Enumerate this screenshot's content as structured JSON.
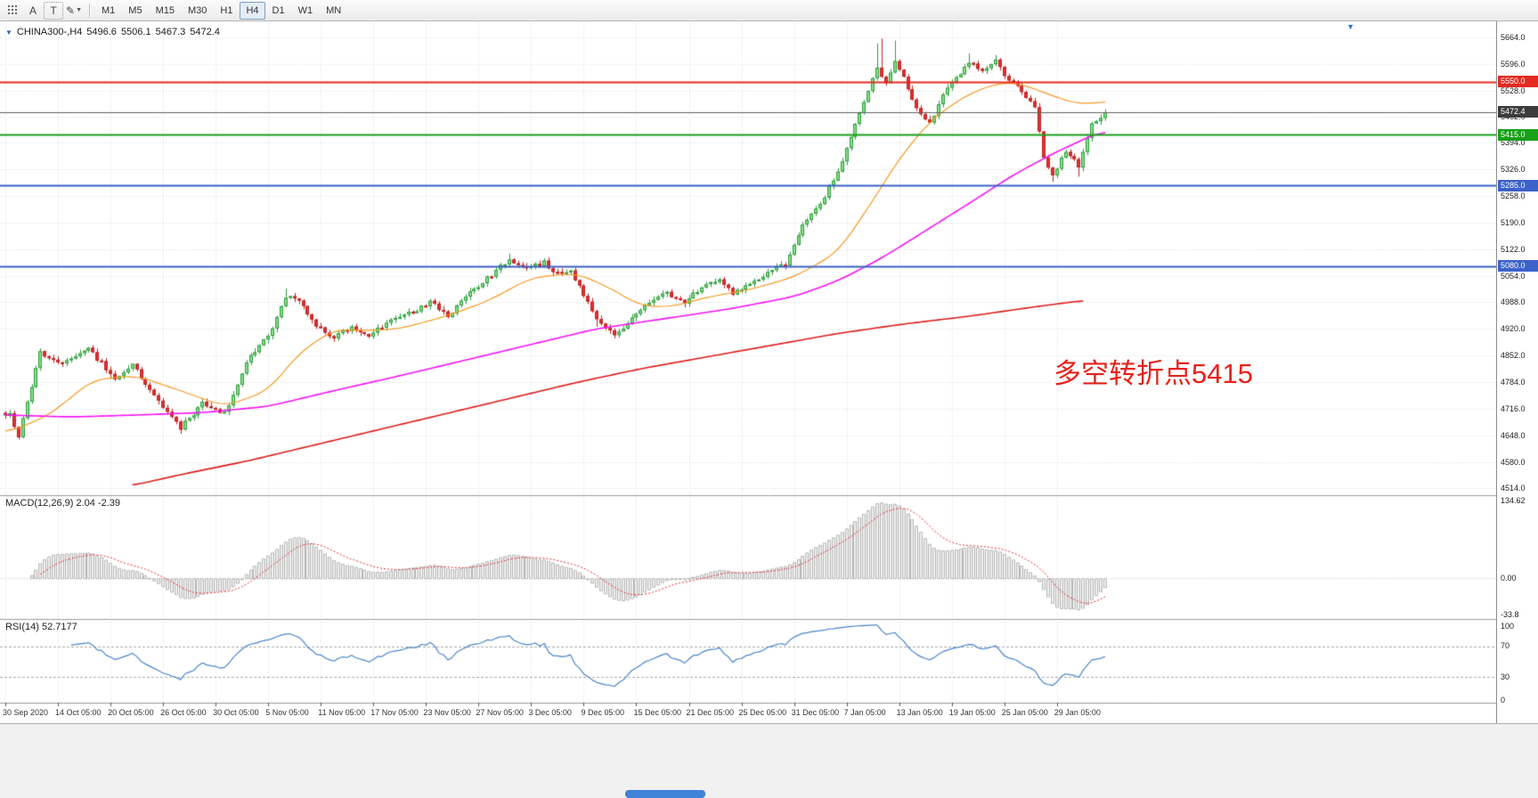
{
  "toolbar": {
    "tool_labels": {
      "text": "A",
      "frame": "T"
    },
    "timeframes": [
      "M1",
      "M5",
      "M15",
      "M30",
      "H1",
      "H4",
      "D1",
      "W1",
      "MN"
    ],
    "active_timeframe": "H4"
  },
  "chart_header": {
    "symbol": "CHINA300-,H4",
    "open": "5496.6",
    "high": "5506.1",
    "low": "5467.3",
    "close": "5472.4"
  },
  "annotation": {
    "text": "多空转折点5415",
    "color": "#e5231b"
  },
  "price_tags": [
    {
      "label": "5550.0",
      "price": 5550,
      "bg": "#e22a20"
    },
    {
      "label": "5472.4",
      "price": 5472.4,
      "bg": "#3c3c3c"
    },
    {
      "label": "5415.0",
      "price": 5415,
      "bg": "#18a018"
    },
    {
      "label": "5285.0",
      "price": 5285,
      "bg": "#3b62c8"
    },
    {
      "label": "5080.0",
      "price": 5080,
      "bg": "#3b62c8"
    }
  ],
  "macd_pane": {
    "header": "MACD(12,26,9) 2.04 -2.39",
    "axis_top": "134.62",
    "axis_zero": "0.00",
    "axis_bottom": "-33.8"
  },
  "rsi_pane": {
    "header": "RSI(14) 52.7177",
    "axis_labels": [
      "100",
      "70",
      "30",
      "0"
    ]
  },
  "chart_data": {
    "type": "candlestick",
    "symbol": "CHINA300-",
    "timeframe": "H4",
    "bars": 252,
    "bar_pitch": 4.92,
    "label_every": 12,
    "ylim": [
      4500,
      5695
    ],
    "last_close": 5472.4,
    "grid": true,
    "colors": {
      "up_fill": "#86df86",
      "up_line": "#2f9e3f",
      "down_fill": "#e03131",
      "down_line": "#c02525",
      "grid": "#dcdcdc",
      "macd_hist_fill": "#f0f0f0",
      "macd_hist_line": "#b6b6b6",
      "macd_signal": "#e03131",
      "rsi_line": "#4a86c8"
    },
    "price_ticks": [
      5664,
      5596,
      5528,
      5462,
      5394,
      5326,
      5258,
      5190,
      5122,
      5054,
      4988,
      4920,
      4852,
      4784,
      4716,
      4648,
      4580,
      4514
    ],
    "date_labels": [
      "30 Sep 2020",
      "14 Oct 05:00",
      "20 Oct 05:00",
      "26 Oct 05:00",
      "30 Oct 05:00",
      "5 Nov 05:00",
      "11 Nov 05:00",
      "17 Nov 05:00",
      "23 Nov 05:00",
      "27 Nov 05:00",
      "3 Dec 05:00",
      "9 Dec 05:00",
      "15 Dec 05:00",
      "21 Dec 05:00",
      "25 Dec 05:00",
      "31 Dec 05:00",
      "7 Jan 05:00",
      "13 Jan 05:00",
      "19 Jan 05:00",
      "25 Jan 05:00",
      "29 Jan 05:00"
    ],
    "hlines": [
      {
        "price": 5550,
        "color": "#e22a20",
        "width": 2
      },
      {
        "price": 5472.4,
        "color": "#606060",
        "width": 1
      },
      {
        "price": 5415,
        "color": "#18a018",
        "width": 2
      },
      {
        "price": 5285,
        "color": "#3b62c8",
        "width": 2
      },
      {
        "price": 5080,
        "color": "#3b62c8",
        "width": 2
      }
    ],
    "close_keyframes": [
      [
        0,
        4695
      ],
      [
        1,
        4702
      ],
      [
        3,
        4648
      ],
      [
        8,
        4858
      ],
      [
        13,
        4835
      ],
      [
        19,
        4868
      ],
      [
        25,
        4795
      ],
      [
        29,
        4830
      ],
      [
        34,
        4745
      ],
      [
        40,
        4668
      ],
      [
        45,
        4730
      ],
      [
        50,
        4705
      ],
      [
        56,
        4855
      ],
      [
        60,
        4900
      ],
      [
        64,
        5005
      ],
      [
        67,
        4990
      ],
      [
        71,
        4925
      ],
      [
        75,
        4898
      ],
      [
        79,
        4925
      ],
      [
        83,
        4902
      ],
      [
        88,
        4940
      ],
      [
        93,
        4962
      ],
      [
        97,
        4988
      ],
      [
        101,
        4950
      ],
      [
        106,
        5010
      ],
      [
        111,
        5058
      ],
      [
        115,
        5098
      ],
      [
        119,
        5075
      ],
      [
        123,
        5088
      ],
      [
        126,
        5060
      ],
      [
        129,
        5072
      ],
      [
        132,
        5005
      ],
      [
        135,
        4945
      ],
      [
        139,
        4902
      ],
      [
        143,
        4950
      ],
      [
        147,
        4992
      ],
      [
        151,
        5012
      ],
      [
        155,
        4988
      ],
      [
        159,
        5028
      ],
      [
        163,
        5046
      ],
      [
        166,
        5012
      ],
      [
        170,
        5038
      ],
      [
        174,
        5060
      ],
      [
        178,
        5085
      ],
      [
        182,
        5180
      ],
      [
        186,
        5240
      ],
      [
        190,
        5320
      ],
      [
        193,
        5410
      ],
      [
        196,
        5500
      ],
      [
        199,
        5585
      ],
      [
        201,
        5545
      ],
      [
        203,
        5605
      ],
      [
        205,
        5560
      ],
      [
        207,
        5500
      ],
      [
        209,
        5465
      ],
      [
        211,
        5440
      ],
      [
        214,
        5515
      ],
      [
        217,
        5560
      ],
      [
        220,
        5600
      ],
      [
        223,
        5580
      ],
      [
        226,
        5605
      ],
      [
        229,
        5550
      ],
      [
        232,
        5530
      ],
      [
        235,
        5480
      ],
      [
        237,
        5355
      ],
      [
        239,
        5315
      ],
      [
        242,
        5370
      ],
      [
        245,
        5335
      ],
      [
        248,
        5445
      ],
      [
        251,
        5472.4
      ]
    ],
    "wick_highs": [
      [
        64,
        5022
      ],
      [
        115,
        5112
      ],
      [
        199,
        5648
      ],
      [
        200,
        5660
      ],
      [
        203,
        5655
      ],
      [
        220,
        5622
      ],
      [
        226,
        5618
      ]
    ],
    "wick_lows": [
      [
        3,
        4640
      ],
      [
        40,
        4652
      ],
      [
        135,
        4925
      ],
      [
        239,
        5295
      ],
      [
        245,
        5308
      ]
    ],
    "moving_averages": [
      {
        "name": "ma-fast-orange",
        "color": "#f59a23",
        "width": 1.2,
        "from": 0,
        "to": 251,
        "keyframes": [
          [
            0,
            4652
          ],
          [
            10,
            4700
          ],
          [
            20,
            4790
          ],
          [
            30,
            4800
          ],
          [
            40,
            4762
          ],
          [
            50,
            4722
          ],
          [
            60,
            4762
          ],
          [
            67,
            4858
          ],
          [
            75,
            4918
          ],
          [
            82,
            4915
          ],
          [
            90,
            4920
          ],
          [
            100,
            4950
          ],
          [
            110,
            4990
          ],
          [
            120,
            5050
          ],
          [
            130,
            5062
          ],
          [
            137,
            5030
          ],
          [
            145,
            4978
          ],
          [
            152,
            4976
          ],
          [
            160,
            5000
          ],
          [
            170,
            5020
          ],
          [
            180,
            5052
          ],
          [
            190,
            5115
          ],
          [
            197,
            5230
          ],
          [
            205,
            5370
          ],
          [
            212,
            5460
          ],
          [
            220,
            5520
          ],
          [
            227,
            5548
          ],
          [
            232,
            5545
          ],
          [
            237,
            5522
          ],
          [
            245,
            5492
          ],
          [
            251,
            5500
          ]
        ]
      },
      {
        "name": "ma-mid-magenta",
        "color": "#f414f4",
        "width": 1.6,
        "from": 0,
        "to": 251,
        "keyframes": [
          [
            0,
            4700
          ],
          [
            15,
            4695
          ],
          [
            30,
            4700
          ],
          [
            45,
            4706
          ],
          [
            60,
            4722
          ],
          [
            75,
            4762
          ],
          [
            90,
            4800
          ],
          [
            105,
            4840
          ],
          [
            120,
            4880
          ],
          [
            135,
            4920
          ],
          [
            150,
            4945
          ],
          [
            165,
            4970
          ],
          [
            180,
            5002
          ],
          [
            190,
            5042
          ],
          [
            200,
            5100
          ],
          [
            210,
            5170
          ],
          [
            220,
            5240
          ],
          [
            230,
            5312
          ],
          [
            240,
            5372
          ],
          [
            251,
            5428
          ]
        ]
      },
      {
        "name": "ma-slow-red",
        "color": "#dd1e1e",
        "width": 1.6,
        "from": 29,
        "to": 246,
        "keyframes": [
          [
            29,
            4520
          ],
          [
            40,
            4548
          ],
          [
            55,
            4582
          ],
          [
            70,
            4622
          ],
          [
            85,
            4662
          ],
          [
            100,
            4702
          ],
          [
            115,
            4742
          ],
          [
            130,
            4782
          ],
          [
            145,
            4818
          ],
          [
            160,
            4848
          ],
          [
            175,
            4878
          ],
          [
            190,
            4908
          ],
          [
            205,
            4932
          ],
          [
            220,
            4952
          ],
          [
            235,
            4976
          ],
          [
            246,
            4992
          ]
        ]
      }
    ],
    "macd": {
      "fast": 12,
      "slow": 26,
      "signal": 9
    },
    "rsi": {
      "period": 14,
      "levels": [
        70,
        30
      ]
    }
  }
}
